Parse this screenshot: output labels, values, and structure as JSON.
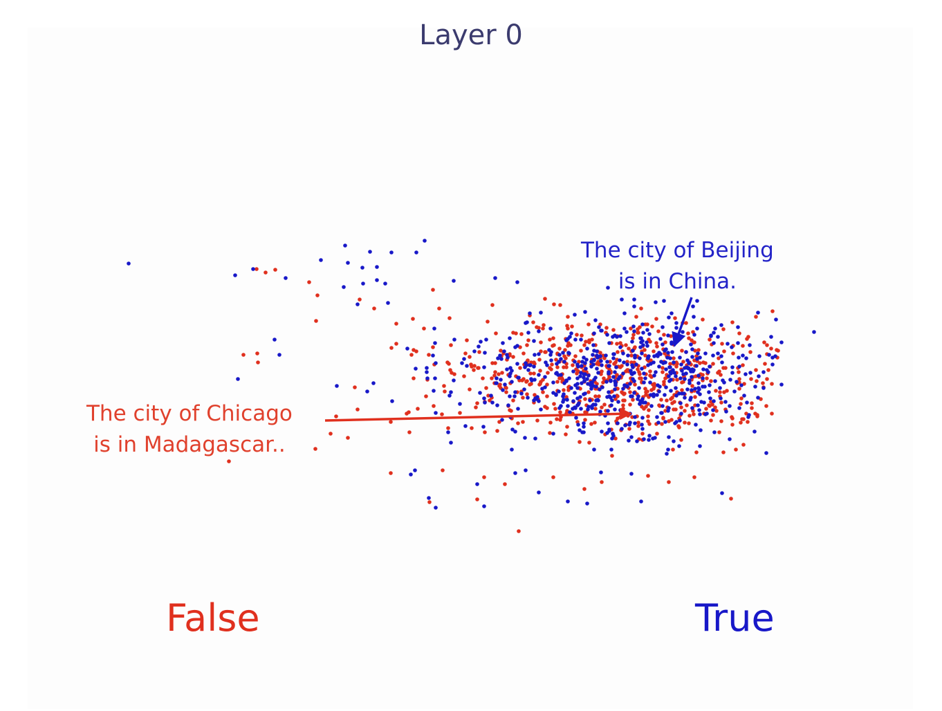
{
  "chart_data": {
    "type": "scatter",
    "title": "Layer 0",
    "xlabel": "",
    "ylabel": "",
    "grid": false,
    "legend_labels": [
      "False",
      "True"
    ],
    "legend_placement": "bottom",
    "colors": {
      "False": "#e0301e",
      "True": "#1818c8",
      "title": "#3b3b6e"
    },
    "annotations": [
      {
        "label": "annotation-true",
        "color": "#2323c8",
        "lines": [
          "The city of Beijing",
          "is in China."
        ],
        "from": [
          1000,
          430
        ],
        "to": [
          975,
          500
        ]
      },
      {
        "label": "annotation-false",
        "color": "#e0412d",
        "lines": [
          "The city of Chicago",
          "is in Madagascar.."
        ],
        "from": [
          470,
          608
        ],
        "to": [
          912,
          598
        ]
      }
    ],
    "series": [
      {
        "name": "True",
        "color": "#1818c8",
        "points": [
          [
            186,
            381
          ],
          [
            340,
            398
          ],
          [
            366,
            389
          ],
          [
            413,
            402
          ],
          [
            397,
            491
          ],
          [
            404,
            513
          ],
          [
            344,
            548
          ],
          [
            499,
            355
          ],
          [
            535,
            364
          ],
          [
            566,
            365
          ],
          [
            614,
            348
          ],
          [
            464,
            376
          ],
          [
            503,
            380
          ],
          [
            524,
            387
          ],
          [
            545,
            386
          ],
          [
            545,
            405
          ],
          [
            525,
            410
          ],
          [
            497,
            415
          ],
          [
            517,
            440
          ],
          [
            557,
            410
          ],
          [
            561,
            438
          ],
          [
            602,
            365
          ],
          [
            656,
            406
          ],
          [
            716,
            402
          ],
          [
            748,
            408
          ],
          [
            879,
            416
          ],
          [
            1177,
            480
          ],
          [
            1108,
            655
          ],
          [
            1122,
            462
          ],
          [
            629,
            496
          ],
          [
            601,
            533
          ],
          [
            540,
            554
          ],
          [
            487,
            558
          ],
          [
            531,
            566
          ],
          [
            567,
            580
          ],
          [
            652,
            640
          ],
          [
            594,
            686
          ],
          [
            620,
            720
          ],
          [
            630,
            734
          ],
          [
            700,
            732
          ],
          [
            779,
            712
          ],
          [
            821,
            725
          ],
          [
            849,
            728
          ],
          [
            927,
            725
          ],
          [
            1044,
            713
          ],
          [
            913,
            685
          ],
          [
            982,
            645
          ],
          [
            600,
            680
          ],
          [
            690,
            700
          ],
          [
            740,
            650
          ],
          [
            760,
            680
          ]
        ]
      },
      {
        "name": "False",
        "color": "#e0301e",
        "points": [
          [
            371,
            389
          ],
          [
            384,
            394
          ],
          [
            398,
            390
          ],
          [
            352,
            513
          ],
          [
            372,
            511
          ],
          [
            373,
            524
          ],
          [
            447,
            408
          ],
          [
            459,
            427
          ],
          [
            457,
            464
          ],
          [
            520,
            433
          ],
          [
            541,
            446
          ],
          [
            573,
            468
          ],
          [
            573,
            497
          ],
          [
            566,
            503
          ],
          [
            626,
            419
          ],
          [
            635,
            446
          ],
          [
            597,
            461
          ],
          [
            613,
            475
          ],
          [
            595,
            513
          ],
          [
            618,
            549
          ],
          [
            627,
            587
          ],
          [
            588,
            598
          ],
          [
            565,
            610
          ],
          [
            592,
            625
          ],
          [
            513,
            560
          ],
          [
            517,
            592
          ],
          [
            486,
            602
          ],
          [
            503,
            633
          ],
          [
            478,
            627
          ],
          [
            456,
            649
          ],
          [
            331,
            667
          ],
          [
            565,
            684
          ],
          [
            621,
            726
          ],
          [
            690,
            722
          ],
          [
            750,
            768
          ],
          [
            845,
            707
          ],
          [
            870,
            697
          ],
          [
            937,
            688
          ],
          [
            967,
            697
          ],
          [
            1004,
            690
          ],
          [
            1046,
            654
          ],
          [
            1057,
            721
          ],
          [
            1109,
            548
          ],
          [
            1124,
            517
          ],
          [
            1093,
            458
          ],
          [
            665,
            597
          ],
          [
            690,
            583
          ],
          [
            640,
            680
          ],
          [
            700,
            690
          ],
          [
            730,
            700
          ],
          [
            800,
            690
          ]
        ]
      }
    ]
  },
  "header": {
    "title": "Layer 0"
  },
  "legend": {
    "false_label": "False",
    "true_label": "True"
  },
  "annotations": {
    "true_line1": "The city of Beijing",
    "true_line2": "is in China.",
    "false_line1": "The city of Chicago",
    "false_line2": "is in Madagascar.."
  }
}
